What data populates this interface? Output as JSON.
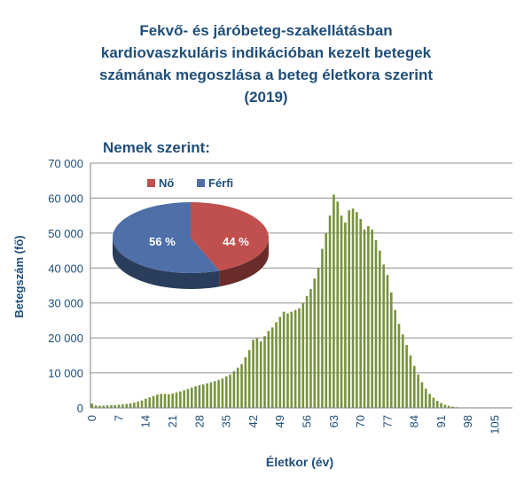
{
  "chart_data": [
    {
      "type": "bar",
      "title_lines": [
        "Fekvő- és járóbeteg-szakellátásban",
        "kardiovaszkuláris indikációban kezelt betegek",
        "számának megoszlása a beteg életkora szerint",
        "(2019)"
      ],
      "xlabel": "Életkor (év)",
      "ylabel": "Betegszám (fő)",
      "ylim": [
        0,
        70000
      ],
      "y_ticks": [
        "0",
        "10 000",
        "20 000",
        "30 000",
        "40 000",
        "50 000",
        "60 000",
        "70 000"
      ],
      "x_tick_labels": [
        "0",
        "7",
        "14",
        "21",
        "28",
        "35",
        "42",
        "49",
        "56",
        "63",
        "70",
        "77",
        "84",
        "91",
        "98",
        "105"
      ],
      "grid": true,
      "bar_color": "#77933c",
      "x": [
        0,
        1,
        2,
        3,
        4,
        5,
        6,
        7,
        8,
        9,
        10,
        11,
        12,
        13,
        14,
        15,
        16,
        17,
        18,
        19,
        20,
        21,
        22,
        23,
        24,
        25,
        26,
        27,
        28,
        29,
        30,
        31,
        32,
        33,
        34,
        35,
        36,
        37,
        38,
        39,
        40,
        41,
        42,
        43,
        44,
        45,
        46,
        47,
        48,
        49,
        50,
        51,
        52,
        53,
        54,
        55,
        56,
        57,
        58,
        59,
        60,
        61,
        62,
        63,
        64,
        65,
        66,
        67,
        68,
        69,
        70,
        71,
        72,
        73,
        74,
        75,
        76,
        77,
        78,
        79,
        80,
        81,
        82,
        83,
        84,
        85,
        86,
        87,
        88,
        89,
        90,
        91,
        92,
        93,
        94,
        95,
        96,
        97,
        98,
        99,
        100,
        101,
        102,
        103,
        104,
        105,
        106,
        107,
        108,
        109
      ],
      "values": [
        1200,
        700,
        600,
        650,
        700,
        750,
        800,
        900,
        1000,
        1100,
        1300,
        1500,
        1800,
        2100,
        2600,
        3000,
        3400,
        3800,
        4000,
        4000,
        3900,
        4100,
        4400,
        4700,
        5000,
        5400,
        5800,
        6200,
        6500,
        6700,
        7000,
        7300,
        7600,
        8000,
        8400,
        9000,
        9500,
        10500,
        11500,
        12500,
        14500,
        16500,
        19500,
        20000,
        19000,
        20500,
        22000,
        23000,
        24500,
        26000,
        27500,
        27000,
        27500,
        28000,
        28500,
        30000,
        32000,
        34000,
        37000,
        40000,
        45500,
        50000,
        55000,
        61000,
        59000,
        55000,
        53000,
        56500,
        57000,
        56000,
        54000,
        51000,
        52000,
        51000,
        48000,
        45000,
        41000,
        38000,
        33000,
        28000,
        24000,
        21000,
        18000,
        15000,
        12000,
        9500,
        7300,
        5500,
        4000,
        2900,
        2000,
        1400,
        900,
        600,
        350,
        200,
        120,
        70,
        40,
        20,
        12,
        8,
        5,
        3,
        2,
        1,
        1,
        1,
        0,
        0
      ],
      "inset_pie": {
        "title": "Nemek szerint:",
        "legend": [
          {
            "name": "Nő",
            "color": "#c0504d"
          },
          {
            "name": "Férfi",
            "color": "#4f6fa8"
          }
        ],
        "slices": [
          {
            "name": "Nő",
            "value": 44,
            "label": "44 %",
            "color": "#c0504d"
          },
          {
            "name": "Férfi",
            "value": 56,
            "label": "56 %",
            "color": "#4f6fa8"
          }
        ]
      }
    }
  ]
}
